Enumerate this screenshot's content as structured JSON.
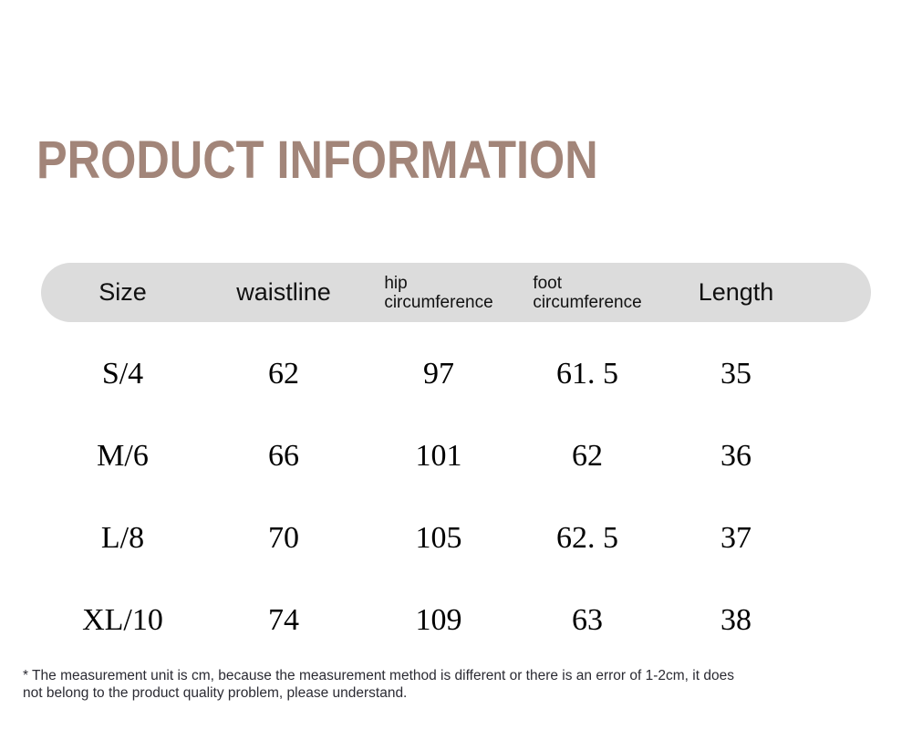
{
  "title": "PRODUCT INFORMATION",
  "colors": {
    "title_brown": "#a28579",
    "header_pill_gray": "#dcdcdc",
    "body_text": "#000000",
    "footnote_text": "#2b2b33"
  },
  "table": {
    "headers": {
      "size": "Size",
      "waistline": "waistline",
      "hip_line1": "hip",
      "hip_line2": "circumference",
      "foot_line1": "foot",
      "foot_line2": "circumference",
      "length": "Length"
    },
    "rows": [
      {
        "size": "S/4",
        "waistline": "62",
        "hip": "97",
        "foot": "61. 5",
        "length": "35"
      },
      {
        "size": "M/6",
        "waistline": "66",
        "hip": "101",
        "foot": "62",
        "length": "36"
      },
      {
        "size": "L/8",
        "waistline": "70",
        "hip": "105",
        "foot": "62. 5",
        "length": "37"
      },
      {
        "size": "XL/10",
        "waistline": "74",
        "hip": "109",
        "foot": "63",
        "length": "38"
      }
    ]
  },
  "footnote": {
    "line1": "* The measurement unit is cm, because the measurement method is different or there is an error of 1-2cm, it does",
    "line2": "not belong to the product quality problem, please understand."
  }
}
